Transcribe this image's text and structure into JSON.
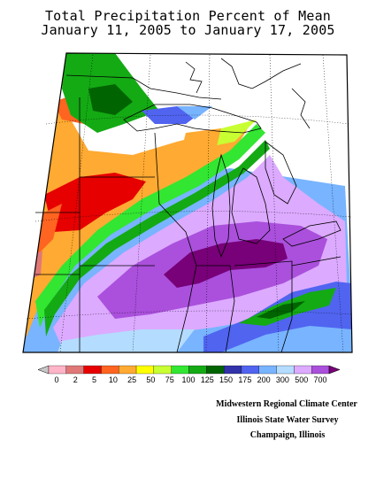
{
  "title": {
    "line1": "Total Precipitation Percent of Mean",
    "line2": "January 11, 2005 to January 17, 2005"
  },
  "legend": {
    "labels": [
      "0",
      "2",
      "5",
      "10",
      "25",
      "50",
      "75",
      "100",
      "125",
      "150",
      "175",
      "200",
      "300",
      "500",
      "700"
    ],
    "colors": [
      "#c8c8c8",
      "#ffb4c8",
      "#e07878",
      "#e60000",
      "#ff6420",
      "#ffaa32",
      "#ffff00",
      "#c8ff32",
      "#32e632",
      "#14aa14",
      "#006400",
      "#3232aa",
      "#5064f0",
      "#78b4ff",
      "#b4dcff",
      "#dcaaff",
      "#aa50dc",
      "#780078"
    ]
  },
  "credits": {
    "line1": "Midwestern Regional Climate Center",
    "line2": "Illinois State Water Survey",
    "line3": "Champaign, Illinois"
  }
}
